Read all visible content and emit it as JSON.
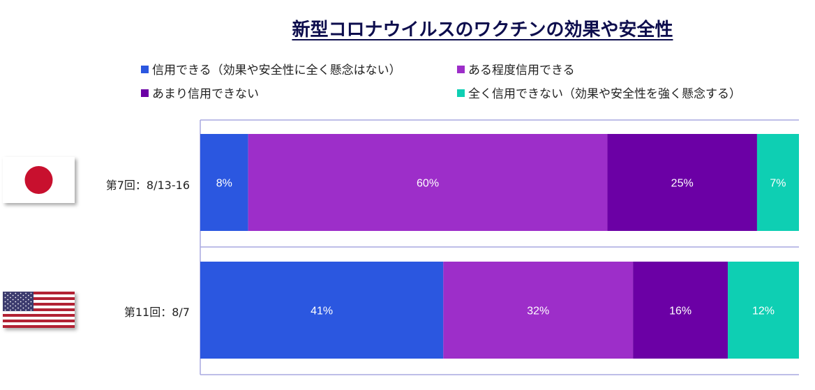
{
  "chart_data": {
    "type": "bar",
    "orientation": "horizontal",
    "stacked": "100%",
    "title": "新型コロナウイルスのワクチンの効果や安全性",
    "categories": [
      "第7回：8/13-16",
      "第11回：8/7"
    ],
    "series": [
      {
        "name": "信用できる（効果や安全性に全く懸念はない）",
        "color": "#2b57e0",
        "values": [
          8,
          41
        ],
        "labels": [
          "8%",
          "41%"
        ]
      },
      {
        "name": "ある程度信用できる",
        "color": "#9d2ec9",
        "values": [
          60,
          32
        ],
        "labels": [
          "60%",
          "32%"
        ]
      },
      {
        "name": "あまり信用できない",
        "color": "#6b00a5",
        "values": [
          25,
          16
        ],
        "labels": [
          "25%",
          "16%"
        ]
      },
      {
        "name": "全く信用できない（効果や安全性を強く懸念する）",
        "color": "#0ecfb3",
        "values": [
          7,
          12
        ],
        "labels": [
          "7%",
          "12%"
        ]
      }
    ],
    "xlim": [
      0,
      100
    ],
    "legend_position": "top",
    "grid": false
  },
  "flags": [
    "japan-flag",
    "usa-flag"
  ]
}
